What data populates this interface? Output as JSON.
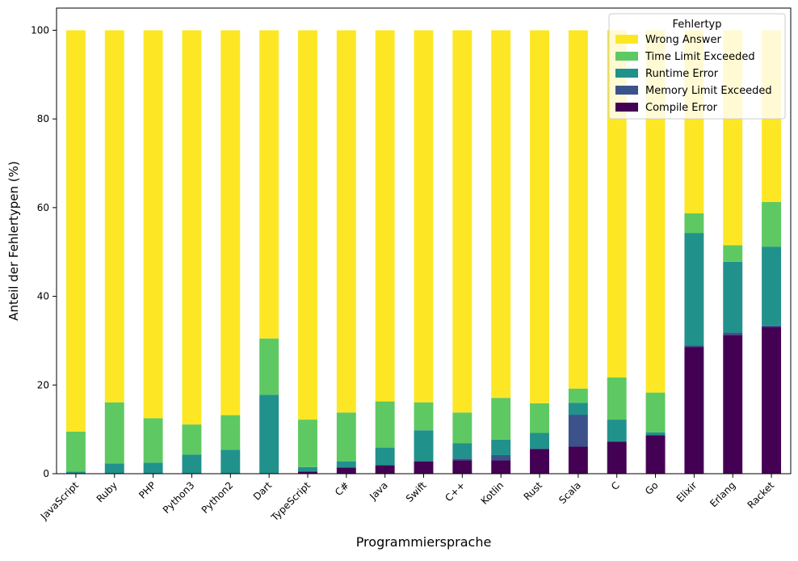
{
  "colors": {
    "Compile Error": "#440154",
    "Memory Limit Exceeded": "#3b528b",
    "Runtime Error": "#21918c",
    "Time Limit Exceeded": "#5ec962",
    "Wrong Answer": "#fde725"
  },
  "chart_data": {
    "type": "bar",
    "stacked": true,
    "xlabel": "Programmiersprache",
    "ylabel": "Anteil der Fehlertypen (%)",
    "ylim": [
      0,
      105
    ],
    "yticks": [
      0,
      20,
      40,
      60,
      80,
      100
    ],
    "grid": false,
    "legend_title": "Fehlertyp",
    "legend_position": "top-right",
    "legend_order": [
      "Wrong Answer",
      "Time Limit Exceeded",
      "Runtime Error",
      "Memory Limit Exceeded",
      "Compile Error"
    ],
    "categories": [
      "JavaScript",
      "Ruby",
      "PHP",
      "Python3",
      "Python2",
      "Dart",
      "TypeScript",
      "C#",
      "Java",
      "Swift",
      "C++",
      "Kotlin",
      "Rust",
      "Scala",
      "C",
      "Go",
      "Elixir",
      "Erlang",
      "Racket"
    ],
    "series": [
      {
        "name": "Compile Error",
        "values": [
          0,
          0,
          0,
          0,
          0,
          0,
          0.5,
          1.4,
          1.9,
          2.8,
          3.0,
          3.0,
          5.6,
          6.1,
          7.2,
          8.7,
          28.6,
          31.3,
          33.1
        ]
      },
      {
        "name": "Memory Limit Exceeded",
        "values": [
          0,
          0,
          0,
          0,
          0,
          0,
          0,
          0,
          0,
          0,
          0.4,
          1.2,
          0,
          7.2,
          0,
          0,
          0.3,
          0.5,
          0.3
        ]
      },
      {
        "name": "Runtime Error",
        "values": [
          0.5,
          2.3,
          2.5,
          4.3,
          5.4,
          17.8,
          1.0,
          1.4,
          4.0,
          7.0,
          3.5,
          3.5,
          3.6,
          2.7,
          5.0,
          0.6,
          25.4,
          16.0,
          17.8
        ]
      },
      {
        "name": "Time Limit Exceeded",
        "values": [
          9.0,
          13.8,
          10.0,
          6.8,
          7.8,
          12.7,
          10.7,
          11.0,
          10.4,
          6.3,
          6.9,
          9.4,
          6.7,
          3.2,
          9.5,
          9.0,
          4.4,
          3.7,
          10.1
        ]
      },
      {
        "name": "Wrong Answer",
        "values": [
          90.5,
          83.9,
          87.5,
          88.9,
          86.8,
          69.5,
          87.8,
          86.2,
          83.7,
          83.9,
          86.2,
          82.9,
          84.1,
          80.8,
          78.3,
          81.7,
          41.3,
          48.5,
          38.7
        ]
      }
    ]
  }
}
